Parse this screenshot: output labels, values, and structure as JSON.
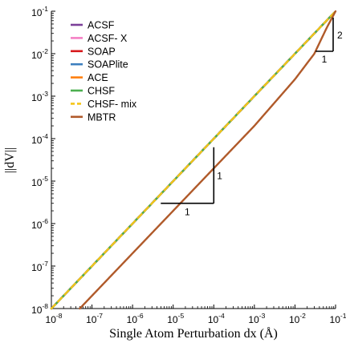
{
  "chart_data": {
    "type": "line",
    "title": "",
    "xlabel": "Single Atom Perturbation dx (Å)",
    "ylabel": "||dV||",
    "xscale": "log",
    "yscale": "log",
    "xlim": [
      1e-08,
      0.1
    ],
    "ylim": [
      1e-08,
      0.1
    ],
    "grid": false,
    "legend_position": "top-left",
    "x_ticks": [
      1e-08,
      1e-07,
      1e-06,
      1e-05,
      0.0001,
      0.001,
      0.01,
      0.1
    ],
    "x_tick_labels": [
      {
        "base": "10",
        "exp": "-8"
      },
      {
        "base": "10",
        "exp": "-7"
      },
      {
        "base": "10",
        "exp": "-6"
      },
      {
        "base": "10",
        "exp": "-5"
      },
      {
        "base": "10",
        "exp": "-4"
      },
      {
        "base": "10",
        "exp": "-3"
      },
      {
        "base": "10",
        "exp": "-2"
      },
      {
        "base": "10",
        "exp": "-1"
      }
    ],
    "y_ticks": [
      1e-08,
      1e-07,
      1e-06,
      1e-05,
      0.0001,
      0.001,
      0.01,
      0.1
    ],
    "y_tick_labels": [
      {
        "base": "10",
        "exp": "-8"
      },
      {
        "base": "10",
        "exp": "-7"
      },
      {
        "base": "10",
        "exp": "-6"
      },
      {
        "base": "10",
        "exp": "-5"
      },
      {
        "base": "10",
        "exp": "-4"
      },
      {
        "base": "10",
        "exp": "-3"
      },
      {
        "base": "10",
        "exp": "-2"
      },
      {
        "base": "10",
        "exp": "-1"
      }
    ],
    "series": [
      {
        "name": "ACSF",
        "color": "#7b3f99",
        "dash": false,
        "x": [
          1e-08,
          1e-07,
          1e-06,
          1e-05,
          0.0001,
          0.001,
          0.01,
          0.1
        ],
        "y": [
          1e-08,
          1e-07,
          1e-06,
          1e-05,
          0.0001,
          0.001,
          0.01,
          0.1
        ]
      },
      {
        "name": "ACSF- X",
        "color": "#f47fc4",
        "dash": false,
        "x": [
          1e-08,
          1e-07,
          1e-06,
          1e-05,
          0.0001,
          0.001,
          0.01,
          0.1
        ],
        "y": [
          1e-08,
          1e-07,
          1e-06,
          1e-05,
          0.0001,
          0.001,
          0.01,
          0.1
        ]
      },
      {
        "name": "SOAP",
        "color": "#d7191c",
        "dash": false,
        "x": [
          1e-08,
          1e-07,
          1e-06,
          1e-05,
          0.0001,
          0.001,
          0.01,
          0.1
        ],
        "y": [
          1e-08,
          1e-07,
          1e-06,
          1e-05,
          0.0001,
          0.001,
          0.01,
          0.1
        ]
      },
      {
        "name": "SOAPlite",
        "color": "#3d7fbf",
        "dash": false,
        "x": [
          1e-08,
          1e-07,
          1e-06,
          1e-05,
          0.0001,
          0.001,
          0.01,
          0.1
        ],
        "y": [
          1e-08,
          1e-07,
          1e-06,
          1e-05,
          0.0001,
          0.001,
          0.01,
          0.1
        ]
      },
      {
        "name": "ACE",
        "color": "#ff7f0e",
        "dash": false,
        "x": [
          1e-08,
          1e-07,
          1e-06,
          1e-05,
          0.0001,
          0.001,
          0.01,
          0.1
        ],
        "y": [
          1e-08,
          1e-07,
          1e-06,
          1e-05,
          0.0001,
          0.001,
          0.01,
          0.1
        ]
      },
      {
        "name": "CHSF",
        "color": "#4caf50",
        "dash": false,
        "x": [
          1e-08,
          1e-07,
          1e-06,
          1e-05,
          0.0001,
          0.001,
          0.01,
          0.1
        ],
        "y": [
          1e-08,
          1e-07,
          1e-06,
          1e-05,
          0.0001,
          0.001,
          0.01,
          0.1
        ]
      },
      {
        "name": "CHSF- mix",
        "color": "#f5c518",
        "dash": true,
        "x": [
          1e-08,
          1e-07,
          1e-06,
          1e-05,
          0.0001,
          0.001,
          0.01,
          0.1
        ],
        "y": [
          1e-08,
          1e-07,
          1e-06,
          1e-05,
          0.0001,
          0.001,
          0.01,
          0.1
        ]
      },
      {
        "name": "MBTR",
        "color": "#b05a2a",
        "dash": false,
        "x": [
          5e-08,
          1e-07,
          1e-06,
          1e-05,
          0.0001,
          0.001,
          0.01,
          0.03,
          0.06,
          0.1
        ],
        "y": [
          1e-08,
          2e-08,
          2e-07,
          2e-06,
          2e-05,
          0.0002,
          0.0025,
          0.01,
          0.04,
          0.1
        ]
      }
    ],
    "slope_triangles": [
      {
        "corner": [
          0.0001,
          3e-06
        ],
        "run_label": "1",
        "rise_label": "1"
      },
      {
        "corner": [
          0.1,
          0.01
        ],
        "run_label": "1",
        "rise_label": "2"
      }
    ]
  }
}
